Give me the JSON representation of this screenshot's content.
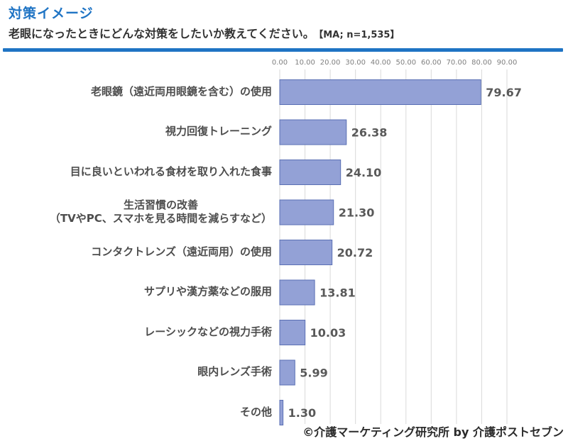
{
  "header": {
    "heading": "対策イメージ",
    "question": "老眼になったときにどんな対策をしたいか教えてください。",
    "sample_note": "【MA; n=1,535】"
  },
  "chart_data": {
    "type": "bar",
    "orientation": "horizontal",
    "categories": [
      "老眼鏡（遠近両用眼鏡を含む）の使用",
      "視力回復トレーニング",
      "目に良いといわれる食材を取り入れた食事",
      "生活習慣の改善\n（TVやPC、スマホを見る時間を減らすなど）",
      "コンタクトレンズ（遠近両用）の使用",
      "サプリや漢方薬などの服用",
      "レーシックなどの視力手術",
      "眼内レンズ手術",
      "その他"
    ],
    "values": [
      79.67,
      26.38,
      24.1,
      21.3,
      20.72,
      13.81,
      10.03,
      5.99,
      1.3
    ],
    "value_labels": [
      "79.67",
      "26.38",
      "24.10",
      "21.30",
      "20.72",
      "13.81",
      "10.03",
      "5.99",
      "1.30"
    ],
    "xlim": [
      0,
      90
    ],
    "ticks": [
      "0.00",
      "10.00",
      "20.00",
      "30.00",
      "40.00",
      "50.00",
      "60.00",
      "70.00",
      "80.00",
      "90.00"
    ],
    "grid": true,
    "axis_position": "top",
    "bar_color": "#93a1d6",
    "bar_border_color": "#5a6fb4",
    "grid_color": "#d9d9d9"
  },
  "footer": {
    "credit": "©介護マーケティング研究所 by 介護ポストセブン"
  }
}
